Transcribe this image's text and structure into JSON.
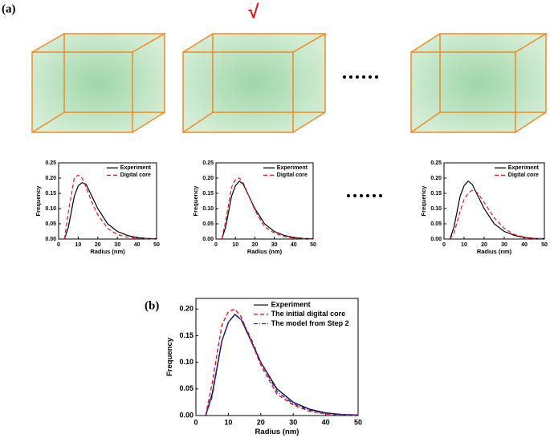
{
  "panel_labels": [
    "(a)",
    "(b)"
  ],
  "annotation": "√",
  "chart_data": [
    {
      "type": "line",
      "xlabel": "Radius (nm)",
      "ylabel": "Frequency",
      "xlim": [
        0,
        50
      ],
      "ylim": [
        0,
        0.25
      ],
      "xticks": [
        0,
        10,
        20,
        30,
        40,
        50
      ],
      "yticks": [
        {
          "value": 0,
          "label": "0.00"
        },
        {
          "value": 0.05,
          "label": "0.05"
        },
        {
          "value": 0.1,
          "label": "0.10"
        },
        {
          "value": 0.15,
          "label": "0.15"
        },
        {
          "value": 0.2,
          "label": "0.20"
        },
        {
          "value": 0.25,
          "label": "0.25"
        }
      ],
      "legend": "upper right",
      "x": [
        3,
        5,
        8,
        10,
        12,
        14,
        17,
        20,
        25,
        30,
        35,
        40,
        45,
        50
      ],
      "series": [
        {
          "name": "Experiment",
          "color": "#000000",
          "style": "solid",
          "values": [
            0,
            0.04,
            0.14,
            0.175,
            0.185,
            0.18,
            0.14,
            0.1,
            0.05,
            0.025,
            0.012,
            0.005,
            0.002,
            0.001
          ]
        },
        {
          "name": "Digital core",
          "color": "#e8141b",
          "style": "dashed",
          "values": [
            0,
            0.09,
            0.2,
            0.21,
            0.2,
            0.17,
            0.12,
            0.08,
            0.035,
            0.015,
            0.006,
            0.002,
            0.001,
            0
          ]
        }
      ]
    },
    {
      "type": "line",
      "xlabel": "Radius (nm)",
      "ylabel": "Frequency",
      "xlim": [
        0,
        50
      ],
      "ylim": [
        0,
        0.25
      ],
      "xticks": [
        0,
        10,
        20,
        30,
        40,
        50
      ],
      "yticks": [
        {
          "value": 0,
          "label": "0.00"
        },
        {
          "value": 0.05,
          "label": "0.05"
        },
        {
          "value": 0.1,
          "label": "0.10"
        },
        {
          "value": 0.15,
          "label": "0.15"
        },
        {
          "value": 0.2,
          "label": "0.20"
        },
        {
          "value": 0.25,
          "label": "0.25"
        }
      ],
      "legend": "upper right",
      "x": [
        3,
        5,
        8,
        10,
        12,
        14,
        17,
        20,
        25,
        30,
        35,
        40,
        45,
        50
      ],
      "series": [
        {
          "name": "Experiment",
          "color": "#000000",
          "style": "solid",
          "values": [
            0,
            0.04,
            0.14,
            0.175,
            0.19,
            0.18,
            0.14,
            0.1,
            0.05,
            0.025,
            0.012,
            0.005,
            0.002,
            0.001
          ]
        },
        {
          "name": "Digital core",
          "color": "#e8141b",
          "style": "dashed",
          "values": [
            0,
            0.06,
            0.17,
            0.195,
            0.2,
            0.185,
            0.14,
            0.095,
            0.04,
            0.02,
            0.008,
            0.003,
            0.001,
            0
          ]
        }
      ]
    },
    {
      "type": "line",
      "xlabel": "Radius (nm)",
      "ylabel": "Frequency",
      "xlim": [
        0,
        50
      ],
      "ylim": [
        0,
        0.25
      ],
      "xticks": [
        0,
        10,
        20,
        30,
        40,
        50
      ],
      "yticks": [
        {
          "value": 0,
          "label": "0.00"
        },
        {
          "value": 0.05,
          "label": "0.05"
        },
        {
          "value": 0.1,
          "label": "0.10"
        },
        {
          "value": 0.15,
          "label": "0.15"
        },
        {
          "value": 0.2,
          "label": "0.20"
        },
        {
          "value": 0.25,
          "label": "0.25"
        }
      ],
      "legend": "upper right",
      "x": [
        3,
        5,
        8,
        10,
        12,
        14,
        17,
        20,
        25,
        30,
        35,
        40,
        45,
        50
      ],
      "series": [
        {
          "name": "Experiment",
          "color": "#000000",
          "style": "solid",
          "values": [
            0,
            0.04,
            0.14,
            0.175,
            0.19,
            0.18,
            0.14,
            0.1,
            0.05,
            0.025,
            0.012,
            0.005,
            0.002,
            0.001
          ]
        },
        {
          "name": "Digital core",
          "color": "#e8141b",
          "style": "dashed",
          "values": [
            0,
            0.02,
            0.09,
            0.13,
            0.15,
            0.16,
            0.15,
            0.12,
            0.07,
            0.035,
            0.015,
            0.006,
            0.002,
            0.001
          ]
        }
      ]
    },
    {
      "type": "line",
      "xlabel": "Radius (nm)",
      "ylabel": "Frequency",
      "xlim": [
        0,
        50
      ],
      "ylim": [
        0,
        0.22
      ],
      "xticks": [
        0,
        10,
        20,
        30,
        40,
        50
      ],
      "yticks": [
        {
          "value": 0,
          "label": "0.00"
        },
        {
          "value": 0.05,
          "label": "0.05"
        },
        {
          "value": 0.1,
          "label": "0.10"
        },
        {
          "value": 0.15,
          "label": "0.15"
        },
        {
          "value": 0.2,
          "label": "0.20"
        }
      ],
      "legend": "upper right",
      "x": [
        3,
        5,
        8,
        10,
        12,
        14,
        17,
        20,
        25,
        30,
        35,
        40,
        45,
        50
      ],
      "series": [
        {
          "name": "Experiment",
          "color": "#0a0a3c",
          "style": "solid",
          "values": [
            0,
            0.04,
            0.14,
            0.175,
            0.19,
            0.18,
            0.14,
            0.1,
            0.05,
            0.025,
            0.012,
            0.005,
            0.002,
            0.001
          ]
        },
        {
          "name": "The initial digital core",
          "color": "#e8141b",
          "style": "dashed",
          "values": [
            0,
            0.06,
            0.17,
            0.195,
            0.2,
            0.185,
            0.14,
            0.095,
            0.04,
            0.02,
            0.008,
            0.003,
            0.001,
            0
          ]
        },
        {
          "name": "The model from Step 2",
          "color": "#3030a0",
          "style": "dashdot",
          "values": [
            0,
            0.035,
            0.14,
            0.175,
            0.19,
            0.18,
            0.145,
            0.1,
            0.045,
            0.022,
            0.01,
            0.004,
            0.002,
            0.001
          ]
        }
      ]
    }
  ]
}
